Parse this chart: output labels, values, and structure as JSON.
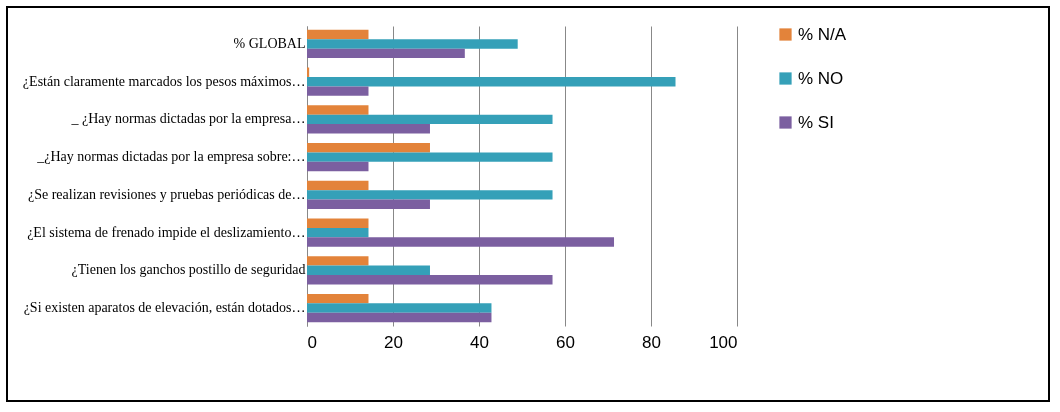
{
  "chart_data": {
    "type": "bar",
    "orientation": "horizontal",
    "categories": [
      "% GLOBAL",
      "¿Están claramente marcados los pesos máximos…",
      "_ ¿Hay normas dictadas por la empresa…",
      "_¿Hay normas dictadas por la empresa sobre:…",
      "¿Se realizan revisiones y pruebas periódicas de…",
      "¿El sistema de frenado impide el deslizamiento…",
      "¿Tienen los ganchos postillo de seguridad",
      "¿Si existen aparatos de elevación, están dotados…"
    ],
    "series": [
      {
        "name": "% N/A",
        "color": "#e3833a",
        "values": [
          14.3,
          0.5,
          14.3,
          28.6,
          14.3,
          14.3,
          14.3,
          14.3
        ]
      },
      {
        "name": "% NO",
        "color": "#35a0b8",
        "values": [
          49,
          85.7,
          57.1,
          57.1,
          57.1,
          14.3,
          28.6,
          42.9
        ]
      },
      {
        "name": "% SI",
        "color": "#7b5fa0",
        "values": [
          36.7,
          14.3,
          28.6,
          14.3,
          28.6,
          71.4,
          57.1,
          42.9
        ]
      }
    ],
    "xlim": [
      0,
      100
    ],
    "xticks": [
      0,
      20,
      40,
      60,
      80,
      100
    ],
    "grid": "x",
    "legend": "right"
  }
}
